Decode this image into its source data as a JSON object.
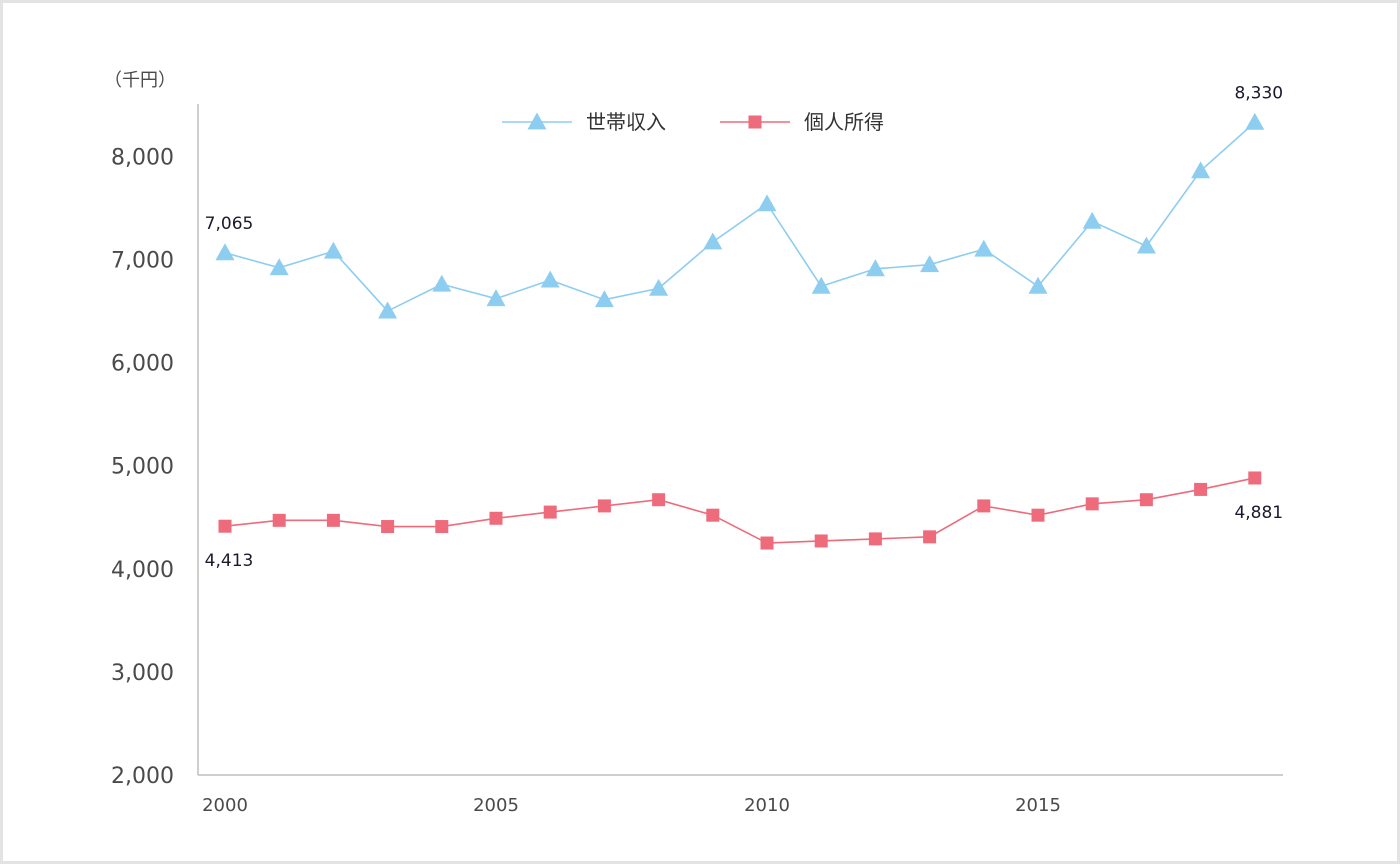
{
  "chart_data": {
    "type": "line",
    "ylabel": "（千円）",
    "ylim": [
      2000,
      8500
    ],
    "yticks": [
      2000,
      3000,
      4000,
      5000,
      6000,
      7000,
      8000
    ],
    "ytick_labels": [
      "2,000",
      "3,000",
      "4,000",
      "5,000",
      "6,000",
      "7,000",
      "8,000"
    ],
    "xticks": [
      2000,
      2005,
      2010,
      2015
    ],
    "xtick_labels": [
      "2000",
      "2005",
      "2010",
      "2015"
    ],
    "x": [
      2000,
      2001,
      2002,
      2003,
      2004,
      2005,
      2006,
      2007,
      2008,
      2009,
      2010,
      2011,
      2012,
      2013,
      2014,
      2015,
      2016,
      2017,
      2018,
      2019
    ],
    "grid": false,
    "legend_position": "top-center",
    "series": [
      {
        "name": "世帯収入",
        "color": "#8dcdf0",
        "marker": "triangle",
        "values": [
          7065,
          6920,
          7080,
          6500,
          6760,
          6620,
          6800,
          6610,
          6720,
          7170,
          7540,
          6740,
          6910,
          6950,
          7100,
          6740,
          7370,
          7130,
          7860,
          8330
        ]
      },
      {
        "name": "個人所得",
        "color": "#ee6b7b",
        "marker": "square",
        "values": [
          4413,
          4470,
          4470,
          4410,
          4410,
          4490,
          4550,
          4610,
          4670,
          4520,
          4250,
          4270,
          4290,
          4310,
          4610,
          4520,
          4630,
          4670,
          4770,
          4881
        ]
      }
    ],
    "annotations": [
      {
        "series": 0,
        "index": 0,
        "text": "7,065",
        "position": "above"
      },
      {
        "series": 0,
        "index": 19,
        "text": "8,330",
        "position": "above"
      },
      {
        "series": 1,
        "index": 0,
        "text": "4,413",
        "position": "below"
      },
      {
        "series": 1,
        "index": 19,
        "text": "4,881",
        "position": "below"
      }
    ]
  }
}
